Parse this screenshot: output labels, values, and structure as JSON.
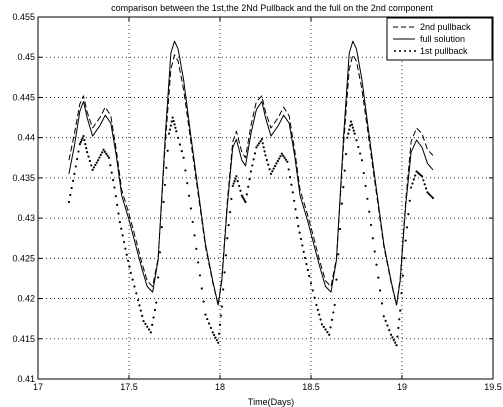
{
  "chart_data": {
    "type": "line",
    "title": "comparison between the 1st,the 2Nd Pullback and the full on the 2nd component",
    "xlabel": "Time(Days)",
    "ylabel": "",
    "xlim": [
      17,
      19.5
    ],
    "ylim": [
      0.41,
      0.455
    ],
    "grid": true,
    "legend_position": "top-right",
    "x_ticks": [
      "17",
      "17.5",
      "18",
      "18.5",
      "19",
      "19.5"
    ],
    "y_ticks": [
      "0.41",
      "0.415",
      "0.42",
      "0.425",
      "0.43",
      "0.435",
      "0.44",
      "0.445",
      "0.45",
      "0.455"
    ],
    "series": [
      {
        "name": "2nd pullback",
        "style": "dashed",
        "color": "#000000",
        "points": [
          [
            17.17,
            0.4372
          ],
          [
            17.2,
            0.4405
          ],
          [
            17.23,
            0.4442
          ],
          [
            17.25,
            0.4452
          ],
          [
            17.27,
            0.4432
          ],
          [
            17.3,
            0.4412
          ],
          [
            17.34,
            0.4425
          ],
          [
            17.37,
            0.4438
          ],
          [
            17.4,
            0.4427
          ],
          [
            17.43,
            0.4385
          ],
          [
            17.46,
            0.4335
          ],
          [
            17.5,
            0.4305
          ],
          [
            17.53,
            0.428
          ],
          [
            17.57,
            0.4245
          ],
          [
            17.6,
            0.4222
          ],
          [
            17.63,
            0.4215
          ],
          [
            17.66,
            0.425
          ],
          [
            17.7,
            0.4395
          ],
          [
            17.73,
            0.4485
          ],
          [
            17.75,
            0.4503
          ],
          [
            17.77,
            0.4495
          ],
          [
            17.8,
            0.446
          ],
          [
            17.84,
            0.4395
          ],
          [
            17.88,
            0.433
          ],
          [
            17.92,
            0.4265
          ],
          [
            17.96,
            0.422
          ],
          [
            17.99,
            0.4192
          ],
          [
            18.01,
            0.4225
          ],
          [
            18.04,
            0.432
          ],
          [
            18.07,
            0.4395
          ],
          [
            18.09,
            0.4408
          ],
          [
            18.12,
            0.4382
          ],
          [
            18.14,
            0.4375
          ],
          [
            18.17,
            0.4415
          ],
          [
            18.2,
            0.4445
          ],
          [
            18.23,
            0.4452
          ],
          [
            18.25,
            0.4432
          ],
          [
            18.28,
            0.4412
          ],
          [
            18.32,
            0.4425
          ],
          [
            18.35,
            0.4438
          ],
          [
            18.38,
            0.4427
          ],
          [
            18.41,
            0.4385
          ],
          [
            18.44,
            0.4335
          ],
          [
            18.48,
            0.4305
          ],
          [
            18.51,
            0.428
          ],
          [
            18.55,
            0.4245
          ],
          [
            18.58,
            0.4222
          ],
          [
            18.61,
            0.4215
          ],
          [
            18.64,
            0.425
          ],
          [
            18.68,
            0.4395
          ],
          [
            18.71,
            0.4485
          ],
          [
            18.73,
            0.4503
          ],
          [
            18.75,
            0.4495
          ],
          [
            18.78,
            0.446
          ],
          [
            18.82,
            0.4395
          ],
          [
            18.86,
            0.433
          ],
          [
            18.9,
            0.4265
          ],
          [
            18.94,
            0.422
          ],
          [
            18.97,
            0.4192
          ],
          [
            18.99,
            0.4225
          ],
          [
            19.02,
            0.432
          ],
          [
            19.05,
            0.4395
          ],
          [
            19.08,
            0.4412
          ],
          [
            19.11,
            0.4405
          ],
          [
            19.14,
            0.4385
          ],
          [
            19.17,
            0.4378
          ]
        ]
      },
      {
        "name": "full solution",
        "style": "solid",
        "color": "#000000",
        "points": [
          [
            17.17,
            0.4355
          ],
          [
            17.2,
            0.439
          ],
          [
            17.23,
            0.4433
          ],
          [
            17.25,
            0.4445
          ],
          [
            17.27,
            0.4425
          ],
          [
            17.3,
            0.4402
          ],
          [
            17.34,
            0.4415
          ],
          [
            17.37,
            0.4428
          ],
          [
            17.4,
            0.4418
          ],
          [
            17.43,
            0.4378
          ],
          [
            17.46,
            0.4328
          ],
          [
            17.5,
            0.4298
          ],
          [
            17.53,
            0.4272
          ],
          [
            17.57,
            0.4238
          ],
          [
            17.6,
            0.4215
          ],
          [
            17.63,
            0.4208
          ],
          [
            17.66,
            0.4248
          ],
          [
            17.7,
            0.4405
          ],
          [
            17.73,
            0.4505
          ],
          [
            17.75,
            0.452
          ],
          [
            17.77,
            0.451
          ],
          [
            17.8,
            0.4472
          ],
          [
            17.84,
            0.4402
          ],
          [
            17.88,
            0.4335
          ],
          [
            17.92,
            0.4268
          ],
          [
            17.96,
            0.4222
          ],
          [
            17.99,
            0.4192
          ],
          [
            18.01,
            0.4222
          ],
          [
            18.04,
            0.4315
          ],
          [
            18.07,
            0.4388
          ],
          [
            18.09,
            0.4398
          ],
          [
            18.12,
            0.4372
          ],
          [
            18.14,
            0.4365
          ],
          [
            18.17,
            0.4405
          ],
          [
            18.2,
            0.4435
          ],
          [
            18.23,
            0.4445
          ],
          [
            18.25,
            0.4425
          ],
          [
            18.28,
            0.4402
          ],
          [
            18.32,
            0.4415
          ],
          [
            18.35,
            0.4428
          ],
          [
            18.38,
            0.4418
          ],
          [
            18.41,
            0.4378
          ],
          [
            18.44,
            0.4328
          ],
          [
            18.48,
            0.4298
          ],
          [
            18.51,
            0.4272
          ],
          [
            18.55,
            0.4238
          ],
          [
            18.58,
            0.4215
          ],
          [
            18.61,
            0.4208
          ],
          [
            18.64,
            0.4248
          ],
          [
            18.68,
            0.4405
          ],
          [
            18.71,
            0.4505
          ],
          [
            18.73,
            0.452
          ],
          [
            18.75,
            0.451
          ],
          [
            18.78,
            0.4472
          ],
          [
            18.82,
            0.4402
          ],
          [
            18.86,
            0.4335
          ],
          [
            18.9,
            0.4268
          ],
          [
            18.94,
            0.4222
          ],
          [
            18.97,
            0.4192
          ],
          [
            18.99,
            0.4222
          ],
          [
            19.02,
            0.4315
          ],
          [
            19.05,
            0.4382
          ],
          [
            19.08,
            0.4397
          ],
          [
            19.11,
            0.4388
          ],
          [
            19.14,
            0.4368
          ],
          [
            19.17,
            0.436
          ]
        ]
      },
      {
        "name": "1st pullback",
        "style": "dotted",
        "color": "#000000",
        "points": [
          [
            17.17,
            0.432
          ],
          [
            17.2,
            0.4355
          ],
          [
            17.23,
            0.4392
          ],
          [
            17.25,
            0.4402
          ],
          [
            17.27,
            0.4382
          ],
          [
            17.3,
            0.436
          ],
          [
            17.33,
            0.4372
          ],
          [
            17.36,
            0.4385
          ],
          [
            17.39,
            0.4375
          ],
          [
            17.42,
            0.4338
          ],
          [
            17.45,
            0.4295
          ],
          [
            17.48,
            0.4262
          ],
          [
            17.51,
            0.4232
          ],
          [
            17.55,
            0.4198
          ],
          [
            17.58,
            0.4172
          ],
          [
            17.62,
            0.4158
          ],
          [
            17.65,
            0.4195
          ],
          [
            17.69,
            0.432
          ],
          [
            17.72,
            0.4405
          ],
          [
            17.74,
            0.4425
          ],
          [
            17.76,
            0.4408
          ],
          [
            17.8,
            0.4375
          ],
          [
            17.84,
            0.4312
          ],
          [
            17.88,
            0.4245
          ],
          [
            17.92,
            0.418
          ],
          [
            17.96,
            0.4158
          ],
          [
            17.99,
            0.4145
          ],
          [
            18.01,
            0.419
          ],
          [
            18.04,
            0.4275
          ],
          [
            18.07,
            0.434
          ],
          [
            18.09,
            0.4352
          ],
          [
            18.12,
            0.4328
          ],
          [
            18.14,
            0.432
          ],
          [
            18.17,
            0.4358
          ],
          [
            18.2,
            0.4388
          ],
          [
            18.23,
            0.4398
          ],
          [
            18.25,
            0.4378
          ],
          [
            18.28,
            0.4355
          ],
          [
            18.31,
            0.4368
          ],
          [
            18.34,
            0.438
          ],
          [
            18.37,
            0.437
          ],
          [
            18.4,
            0.4332
          ],
          [
            18.43,
            0.429
          ],
          [
            18.46,
            0.4258
          ],
          [
            18.49,
            0.4228
          ],
          [
            18.53,
            0.4192
          ],
          [
            18.56,
            0.4168
          ],
          [
            18.6,
            0.4155
          ],
          [
            18.63,
            0.4192
          ],
          [
            18.67,
            0.4318
          ],
          [
            18.7,
            0.44
          ],
          [
            18.72,
            0.442
          ],
          [
            18.74,
            0.4405
          ],
          [
            18.78,
            0.4372
          ],
          [
            18.82,
            0.4308
          ],
          [
            18.86,
            0.4242
          ],
          [
            18.9,
            0.4178
          ],
          [
            18.94,
            0.4155
          ],
          [
            18.97,
            0.4142
          ],
          [
            18.99,
            0.4185
          ],
          [
            19.02,
            0.4272
          ],
          [
            19.05,
            0.4338
          ],
          [
            19.08,
            0.4358
          ],
          [
            19.11,
            0.4352
          ],
          [
            19.14,
            0.4332
          ],
          [
            19.17,
            0.4325
          ]
        ]
      }
    ]
  }
}
